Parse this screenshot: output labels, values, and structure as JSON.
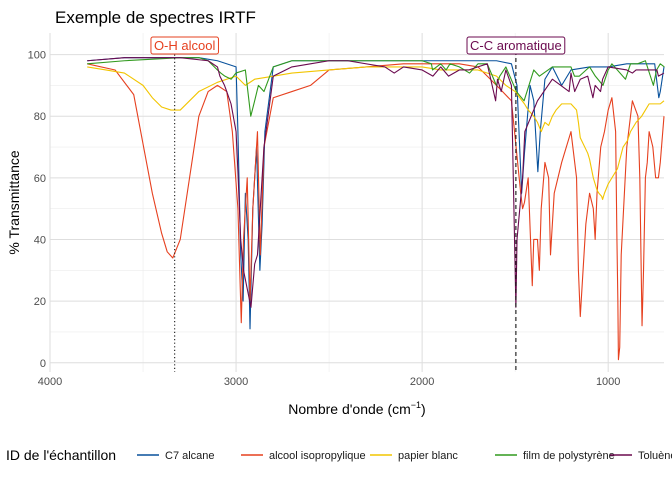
{
  "chart_data": {
    "type": "line",
    "title": "Exemple de spectres IRTF",
    "xlabel": "Nombre d'onde (cm",
    "xlabel_sup": "−1",
    "xlabel_close": ")",
    "ylabel": "% Transmittance",
    "x_reversed": true,
    "xlim": [
      4000,
      700
    ],
    "ylim": [
      -3,
      107
    ],
    "x_ticks": [
      4000,
      3000,
      2000,
      1000
    ],
    "y_ticks": [
      0,
      20,
      40,
      60,
      80,
      100
    ],
    "grid": true,
    "legend_position": "bottom",
    "legend_title": "ID de l'échantillon",
    "series": [
      {
        "name": "C7 alcane",
        "color": "#08519c",
        "points": [
          [
            3800,
            98
          ],
          [
            3600,
            99
          ],
          [
            3400,
            99
          ],
          [
            3200,
            99
          ],
          [
            3100,
            98
          ],
          [
            3000,
            96
          ],
          [
            2990,
            75
          ],
          [
            2975,
            35
          ],
          [
            2962,
            20
          ],
          [
            2950,
            55
          ],
          [
            2935,
            40
          ],
          [
            2925,
            11
          ],
          [
            2910,
            50
          ],
          [
            2890,
            70
          ],
          [
            2872,
            30
          ],
          [
            2860,
            45
          ],
          [
            2845,
            75
          ],
          [
            2800,
            96
          ],
          [
            2700,
            98
          ],
          [
            2500,
            98
          ],
          [
            2200,
            98
          ],
          [
            2000,
            98
          ],
          [
            1800,
            98
          ],
          [
            1600,
            98
          ],
          [
            1520,
            97
          ],
          [
            1490,
            90
          ],
          [
            1465,
            55
          ],
          [
            1450,
            68
          ],
          [
            1420,
            90
          ],
          [
            1400,
            85
          ],
          [
            1378,
            62
          ],
          [
            1365,
            75
          ],
          [
            1340,
            92
          ],
          [
            1300,
            96
          ],
          [
            1250,
            90
          ],
          [
            1200,
            95
          ],
          [
            1100,
            96
          ],
          [
            1000,
            96
          ],
          [
            900,
            97
          ],
          [
            800,
            97
          ],
          [
            750,
            97
          ],
          [
            728,
            86
          ],
          [
            720,
            88
          ],
          [
            700,
            96
          ]
        ]
      },
      {
        "name": "alcool isopropylique",
        "color": "#e6401f",
        "points": [
          [
            3800,
            97
          ],
          [
            3650,
            95
          ],
          [
            3550,
            87
          ],
          [
            3450,
            55
          ],
          [
            3400,
            42
          ],
          [
            3370,
            36
          ],
          [
            3340,
            34
          ],
          [
            3300,
            40
          ],
          [
            3250,
            60
          ],
          [
            3200,
            80
          ],
          [
            3150,
            88
          ],
          [
            3100,
            90
          ],
          [
            3050,
            88
          ],
          [
            3020,
            75
          ],
          [
            2990,
            50
          ],
          [
            2972,
            13
          ],
          [
            2960,
            40
          ],
          [
            2940,
            60
          ],
          [
            2925,
            20
          ],
          [
            2910,
            50
          ],
          [
            2885,
            75
          ],
          [
            2870,
            35
          ],
          [
            2850,
            70
          ],
          [
            2800,
            86
          ],
          [
            2700,
            88
          ],
          [
            2600,
            90
          ],
          [
            2500,
            95
          ],
          [
            2300,
            96
          ],
          [
            2100,
            97
          ],
          [
            2000,
            97
          ],
          [
            1800,
            97
          ],
          [
            1700,
            96
          ],
          [
            1600,
            90
          ],
          [
            1520,
            85
          ],
          [
            1495,
            70
          ],
          [
            1470,
            55
          ],
          [
            1460,
            50
          ],
          [
            1450,
            52
          ],
          [
            1430,
            60
          ],
          [
            1408,
            25
          ],
          [
            1400,
            40
          ],
          [
            1380,
            40
          ],
          [
            1370,
            30
          ],
          [
            1360,
            50
          ],
          [
            1340,
            65
          ],
          [
            1320,
            60
          ],
          [
            1310,
            35
          ],
          [
            1300,
            45
          ],
          [
            1290,
            55
          ],
          [
            1250,
            65
          ],
          [
            1200,
            75
          ],
          [
            1170,
            60
          ],
          [
            1160,
            30
          ],
          [
            1150,
            15
          ],
          [
            1140,
            25
          ],
          [
            1120,
            45
          ],
          [
            1100,
            55
          ],
          [
            1080,
            50
          ],
          [
            1070,
            40
          ],
          [
            1060,
            55
          ],
          [
            1040,
            70
          ],
          [
            1020,
            75
          ],
          [
            1000,
            82
          ],
          [
            980,
            86
          ],
          [
            960,
            75
          ],
          [
            953,
            40
          ],
          [
            948,
            20
          ],
          [
            945,
            1
          ],
          [
            938,
            5
          ],
          [
            930,
            35
          ],
          [
            900,
            70
          ],
          [
            870,
            85
          ],
          [
            840,
            80
          ],
          [
            830,
            60
          ],
          [
            818,
            12
          ],
          [
            810,
            30
          ],
          [
            800,
            60
          ],
          [
            790,
            65
          ],
          [
            780,
            75
          ],
          [
            760,
            70
          ],
          [
            745,
            60
          ],
          [
            730,
            60
          ],
          [
            720,
            65
          ],
          [
            700,
            80
          ]
        ]
      },
      {
        "name": "papier blanc",
        "color": "#f2c500",
        "points": [
          [
            3800,
            96
          ],
          [
            3700,
            95
          ],
          [
            3600,
            94
          ],
          [
            3500,
            90
          ],
          [
            3450,
            86
          ],
          [
            3400,
            83
          ],
          [
            3350,
            82
          ],
          [
            3300,
            82
          ],
          [
            3250,
            85
          ],
          [
            3200,
            88
          ],
          [
            3100,
            91
          ],
          [
            3000,
            93
          ],
          [
            2950,
            90
          ],
          [
            2900,
            92
          ],
          [
            2800,
            93
          ],
          [
            2700,
            94
          ],
          [
            2500,
            95
          ],
          [
            2300,
            96
          ],
          [
            2100,
            96
          ],
          [
            2000,
            96
          ],
          [
            1900,
            95
          ],
          [
            1800,
            95
          ],
          [
            1700,
            95
          ],
          [
            1600,
            93
          ],
          [
            1550,
            90
          ],
          [
            1500,
            88
          ],
          [
            1450,
            84
          ],
          [
            1430,
            82
          ],
          [
            1400,
            80
          ],
          [
            1380,
            78
          ],
          [
            1360,
            75
          ],
          [
            1340,
            78
          ],
          [
            1320,
            77
          ],
          [
            1300,
            80
          ],
          [
            1280,
            82
          ],
          [
            1250,
            84
          ],
          [
            1200,
            84
          ],
          [
            1170,
            82
          ],
          [
            1160,
            78
          ],
          [
            1150,
            73
          ],
          [
            1110,
            68
          ],
          [
            1100,
            66
          ],
          [
            1080,
            60
          ],
          [
            1060,
            56
          ],
          [
            1050,
            55
          ],
          [
            1035,
            54
          ],
          [
            1030,
            53
          ],
          [
            1020,
            55
          ],
          [
            1000,
            58
          ],
          [
            980,
            60
          ],
          [
            950,
            63
          ],
          [
            920,
            70
          ],
          [
            897,
            72
          ],
          [
            880,
            75
          ],
          [
            850,
            78
          ],
          [
            820,
            80
          ],
          [
            800,
            82
          ],
          [
            780,
            84
          ],
          [
            760,
            84
          ],
          [
            740,
            84
          ],
          [
            720,
            84
          ],
          [
            700,
            85
          ]
        ]
      },
      {
        "name": "film de polystyrène",
        "color": "#319a1e",
        "points": [
          [
            3800,
            97
          ],
          [
            3600,
            98
          ],
          [
            3300,
            99
          ],
          [
            3200,
            99
          ],
          [
            3150,
            98
          ],
          [
            3100,
            95
          ],
          [
            3082,
            94
          ],
          [
            3060,
            93
          ],
          [
            3026,
            92
          ],
          [
            3001,
            94
          ],
          [
            2950,
            95
          ],
          [
            2921,
            80
          ],
          [
            2900,
            85
          ],
          [
            2880,
            90
          ],
          [
            2850,
            88
          ],
          [
            2800,
            96
          ],
          [
            2700,
            98
          ],
          [
            2400,
            98
          ],
          [
            2000,
            98
          ],
          [
            1950,
            97
          ],
          [
            1944,
            95
          ],
          [
            1900,
            97
          ],
          [
            1871,
            95
          ],
          [
            1850,
            97
          ],
          [
            1800,
            96
          ],
          [
            1745,
            94
          ],
          [
            1700,
            97
          ],
          [
            1650,
            97
          ],
          [
            1601,
            90
          ],
          [
            1583,
            93
          ],
          [
            1550,
            96
          ],
          [
            1493,
            88
          ],
          [
            1452,
            85
          ],
          [
            1400,
            95
          ],
          [
            1370,
            93
          ],
          [
            1300,
            96
          ],
          [
            1200,
            96
          ],
          [
            1181,
            93
          ],
          [
            1155,
            93
          ],
          [
            1100,
            96
          ],
          [
            1069,
            93
          ],
          [
            1028,
            90
          ],
          [
            1000,
            95
          ],
          [
            980,
            97
          ],
          [
            907,
            92
          ],
          [
            880,
            97
          ],
          [
            842,
            97
          ],
          [
            800,
            98
          ],
          [
            757,
            90
          ],
          [
            740,
            95
          ],
          [
            720,
            97
          ],
          [
            698,
            96
          ]
        ]
      },
      {
        "name": "Toluène",
        "color": "#6b0a4f",
        "points": [
          [
            3800,
            98
          ],
          [
            3600,
            99
          ],
          [
            3300,
            99
          ],
          [
            3150,
            98
          ],
          [
            3100,
            96
          ],
          [
            3087,
            93
          ],
          [
            3062,
            90
          ],
          [
            3050,
            88
          ],
          [
            3027,
            84
          ],
          [
            3000,
            75
          ],
          [
            2990,
            62
          ],
          [
            2975,
            40
          ],
          [
            2960,
            30
          ],
          [
            2920,
            18
          ],
          [
            2900,
            32
          ],
          [
            2885,
            35
          ],
          [
            2870,
            50
          ],
          [
            2850,
            70
          ],
          [
            2800,
            93
          ],
          [
            2700,
            96
          ],
          [
            2600,
            97
          ],
          [
            2500,
            98
          ],
          [
            2400,
            98
          ],
          [
            2200,
            96
          ],
          [
            2150,
            94
          ],
          [
            2100,
            96
          ],
          [
            2000,
            95
          ],
          [
            1942,
            93
          ],
          [
            1900,
            96
          ],
          [
            1858,
            93
          ],
          [
            1800,
            95
          ],
          [
            1750,
            95
          ],
          [
            1700,
            96
          ],
          [
            1650,
            97
          ],
          [
            1605,
            85
          ],
          [
            1595,
            92
          ],
          [
            1575,
            88
          ],
          [
            1550,
            95
          ],
          [
            1520,
            90
          ],
          [
            1496,
            18
          ],
          [
            1490,
            40
          ],
          [
            1460,
            60
          ],
          [
            1448,
            75
          ],
          [
            1380,
            85
          ],
          [
            1300,
            92
          ],
          [
            1210,
            88
          ],
          [
            1200,
            94
          ],
          [
            1180,
            88
          ],
          [
            1150,
            92
          ],
          [
            1110,
            93
          ],
          [
            1082,
            86
          ],
          [
            1070,
            90
          ],
          [
            1041,
            88
          ],
          [
            1030,
            92
          ],
          [
            1000,
            96
          ],
          [
            900,
            95
          ],
          [
            870,
            94
          ],
          [
            850,
            95
          ],
          [
            800,
            95
          ],
          [
            760,
            95
          ],
          [
            738,
            95
          ],
          [
            730,
            93
          ],
          [
            700,
            94
          ]
        ]
      }
    ],
    "annotations": [
      {
        "label": "O-H alcool",
        "x": 3330,
        "color": "#e6401f",
        "linestyle": "dotted"
      },
      {
        "label": "C-C aromatique",
        "x": 1496,
        "color": "#6b0a4f",
        "linestyle": "dashed"
      }
    ]
  }
}
